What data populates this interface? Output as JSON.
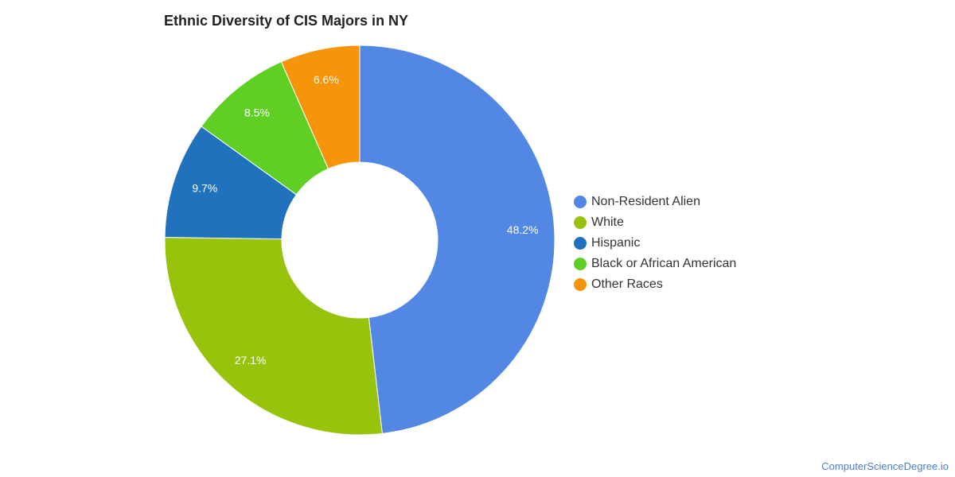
{
  "title": "Ethnic Diversity of CIS Majors in NY",
  "source": "ComputerScienceDegree.io",
  "chart_data": {
    "type": "pie",
    "donut": true,
    "title": "Ethnic Diversity of CIS Majors in NY",
    "legend_position": "right",
    "labels": [
      "Non-Resident Alien",
      "White",
      "Hispanic",
      "Black or African American",
      "Other Races"
    ],
    "values": [
      48.2,
      27.1,
      9.7,
      8.5,
      6.6
    ],
    "value_labels": [
      "48.2%",
      "27.1%",
      "9.7%",
      "8.5%",
      "6.6%"
    ],
    "colors": [
      "#5387e4",
      "#97c30c",
      "#1f72bb",
      "#60cf24",
      "#f6950a"
    ]
  }
}
